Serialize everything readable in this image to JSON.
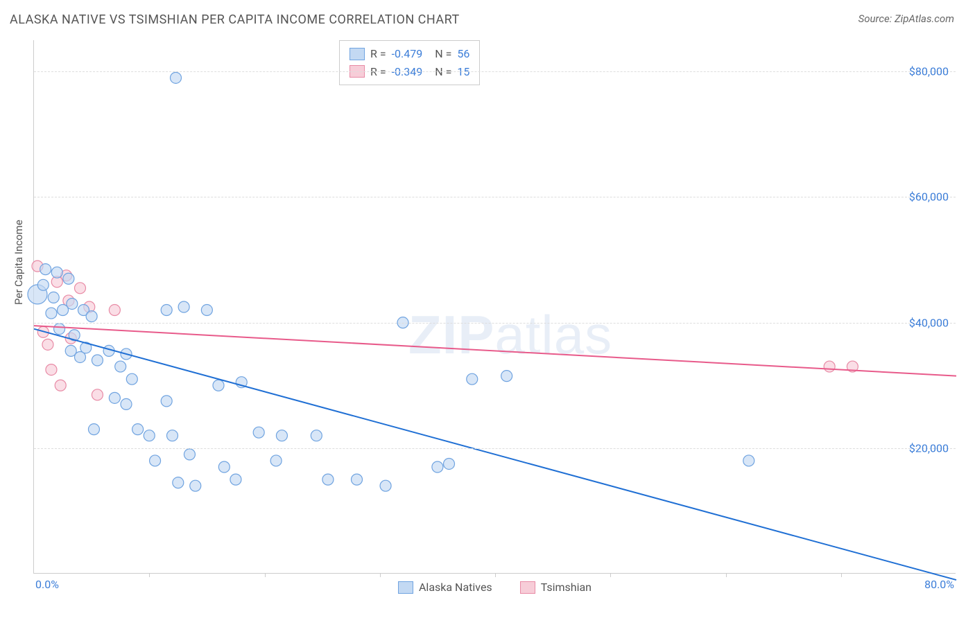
{
  "header": {
    "title": "ALASKA NATIVE VS TSIMSHIAN PER CAPITA INCOME CORRELATION CHART",
    "source": "Source: ZipAtlas.com"
  },
  "ylabel": "Per Capita Income",
  "watermark_a": "ZIP",
  "watermark_b": "atlas",
  "axes": {
    "xlim": [
      0,
      80
    ],
    "ylim": [
      0,
      85000
    ],
    "xtick_min_label": "0.0%",
    "xtick_max_label": "80.0%",
    "xtick_positions": [
      10,
      20,
      30,
      40,
      50,
      60,
      70
    ],
    "yticks": [
      {
        "v": 20000,
        "label": "$20,000"
      },
      {
        "v": 40000,
        "label": "$40,000"
      },
      {
        "v": 60000,
        "label": "$60,000"
      },
      {
        "v": 80000,
        "label": "$80,000"
      }
    ]
  },
  "legend_stats": {
    "series": [
      {
        "swatch_fill": "#c3d9f3",
        "swatch_border": "#6fa3e0",
        "r_label": "R = ",
        "r_val": "-0.479",
        "n_label": "N = ",
        "n_val": "56"
      },
      {
        "swatch_fill": "#f7cdd8",
        "swatch_border": "#e88aa5",
        "r_label": "R = ",
        "r_val": "-0.349",
        "n_label": "N = ",
        "n_val": "15"
      }
    ]
  },
  "bottom_legend": {
    "items": [
      {
        "swatch_fill": "#c3d9f3",
        "swatch_border": "#6fa3e0",
        "label": "Alaska Natives"
      },
      {
        "swatch_fill": "#f7cdd8",
        "swatch_border": "#e88aa5",
        "label": "Tsimshian"
      }
    ]
  },
  "series_blue": {
    "color_fill": "#c3d9f3",
    "color_stroke": "#6fa3e0",
    "line_color": "#1f6fd4",
    "line": {
      "x1": 0,
      "y1": 39000,
      "x2": 80,
      "y2": -1000
    },
    "points": [
      {
        "x": 0.3,
        "y": 44500,
        "r": 14
      },
      {
        "x": 0.8,
        "y": 46000,
        "r": 8
      },
      {
        "x": 1.0,
        "y": 48500,
        "r": 8
      },
      {
        "x": 1.5,
        "y": 41500,
        "r": 8
      },
      {
        "x": 1.7,
        "y": 44000,
        "r": 8
      },
      {
        "x": 2.0,
        "y": 48000,
        "r": 8
      },
      {
        "x": 2.2,
        "y": 39000,
        "r": 8
      },
      {
        "x": 2.5,
        "y": 42000,
        "r": 8
      },
      {
        "x": 3.0,
        "y": 47000,
        "r": 8
      },
      {
        "x": 3.2,
        "y": 35500,
        "r": 8
      },
      {
        "x": 3.3,
        "y": 43000,
        "r": 8
      },
      {
        "x": 3.5,
        "y": 38000,
        "r": 8
      },
      {
        "x": 4.0,
        "y": 34500,
        "r": 8
      },
      {
        "x": 4.3,
        "y": 42000,
        "r": 8
      },
      {
        "x": 4.5,
        "y": 36000,
        "r": 8
      },
      {
        "x": 5.0,
        "y": 41000,
        "r": 8
      },
      {
        "x": 5.2,
        "y": 23000,
        "r": 8
      },
      {
        "x": 5.5,
        "y": 34000,
        "r": 8
      },
      {
        "x": 6.5,
        "y": 35500,
        "r": 8
      },
      {
        "x": 7.0,
        "y": 28000,
        "r": 8
      },
      {
        "x": 7.5,
        "y": 33000,
        "r": 8
      },
      {
        "x": 8.0,
        "y": 35000,
        "r": 8
      },
      {
        "x": 8.0,
        "y": 27000,
        "r": 8
      },
      {
        "x": 8.5,
        "y": 31000,
        "r": 8
      },
      {
        "x": 9.0,
        "y": 23000,
        "r": 8
      },
      {
        "x": 10.0,
        "y": 22000,
        "r": 8
      },
      {
        "x": 10.5,
        "y": 18000,
        "r": 8
      },
      {
        "x": 11.5,
        "y": 42000,
        "r": 8
      },
      {
        "x": 11.5,
        "y": 27500,
        "r": 8
      },
      {
        "x": 12.0,
        "y": 22000,
        "r": 8
      },
      {
        "x": 12.3,
        "y": 79000,
        "r": 8
      },
      {
        "x": 12.5,
        "y": 14500,
        "r": 8
      },
      {
        "x": 13.0,
        "y": 42500,
        "r": 8
      },
      {
        "x": 13.5,
        "y": 19000,
        "r": 8
      },
      {
        "x": 14.0,
        "y": 14000,
        "r": 8
      },
      {
        "x": 15.0,
        "y": 42000,
        "r": 8
      },
      {
        "x": 16.0,
        "y": 30000,
        "r": 8
      },
      {
        "x": 16.5,
        "y": 17000,
        "r": 8
      },
      {
        "x": 17.5,
        "y": 15000,
        "r": 8
      },
      {
        "x": 18.0,
        "y": 30500,
        "r": 8
      },
      {
        "x": 19.5,
        "y": 22500,
        "r": 8
      },
      {
        "x": 21.0,
        "y": 18000,
        "r": 8
      },
      {
        "x": 21.5,
        "y": 22000,
        "r": 8
      },
      {
        "x": 24.5,
        "y": 22000,
        "r": 8
      },
      {
        "x": 25.5,
        "y": 15000,
        "r": 8
      },
      {
        "x": 28.0,
        "y": 15000,
        "r": 8
      },
      {
        "x": 30.5,
        "y": 14000,
        "r": 8
      },
      {
        "x": 32.0,
        "y": 40000,
        "r": 8
      },
      {
        "x": 35.0,
        "y": 17000,
        "r": 8
      },
      {
        "x": 36.0,
        "y": 17500,
        "r": 8
      },
      {
        "x": 38.0,
        "y": 31000,
        "r": 8
      },
      {
        "x": 41.0,
        "y": 31500,
        "r": 8
      },
      {
        "x": 62.0,
        "y": 18000,
        "r": 8
      }
    ]
  },
  "series_pink": {
    "color_fill": "#f7cdd8",
    "color_stroke": "#e88aa5",
    "line_color": "#e85a8a",
    "line": {
      "x1": 0,
      "y1": 39500,
      "x2": 80,
      "y2": 31500
    },
    "points": [
      {
        "x": 0.3,
        "y": 49000,
        "r": 8
      },
      {
        "x": 0.8,
        "y": 38500,
        "r": 8
      },
      {
        "x": 1.2,
        "y": 36500,
        "r": 8
      },
      {
        "x": 1.5,
        "y": 32500,
        "r": 8
      },
      {
        "x": 2.0,
        "y": 46500,
        "r": 8
      },
      {
        "x": 2.3,
        "y": 30000,
        "r": 8
      },
      {
        "x": 2.8,
        "y": 47500,
        "r": 8
      },
      {
        "x": 3.0,
        "y": 43500,
        "r": 8
      },
      {
        "x": 3.2,
        "y": 37500,
        "r": 8
      },
      {
        "x": 4.0,
        "y": 45500,
        "r": 8
      },
      {
        "x": 4.8,
        "y": 42500,
        "r": 8
      },
      {
        "x": 5.5,
        "y": 28500,
        "r": 8
      },
      {
        "x": 7.0,
        "y": 42000,
        "r": 8
      },
      {
        "x": 69.0,
        "y": 33000,
        "r": 8
      },
      {
        "x": 71.0,
        "y": 33000,
        "r": 8
      }
    ]
  }
}
